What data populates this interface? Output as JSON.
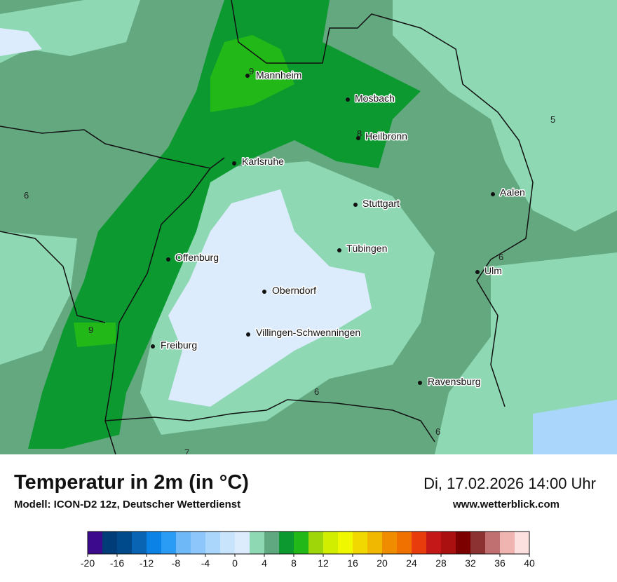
{
  "header": {
    "title": "Temperatur in 2m (in °C)",
    "subtitle": "Modell: ICON-D2 12z, Deutscher Wetterdienst",
    "datetime": "Di, 17.02.2026 14:00 Uhr",
    "website": "www.wetterblick.com"
  },
  "map": {
    "cities": [
      "Mannheim",
      "Mosbach",
      "Heilbronn",
      "Karlsruhe",
      "Stuttgart",
      "Aalen",
      "Tübingen",
      "Ulm",
      "Offenburg",
      "Oberndorf",
      "Villingen-Schwenningen",
      "Freiburg",
      "Ravensburg"
    ],
    "contour_labels": [
      9,
      8,
      5,
      6,
      6,
      9,
      6,
      6,
      7
    ]
  },
  "colorbar": {
    "range": [
      -20,
      40
    ],
    "ticks": [
      -20,
      -16,
      -12,
      -8,
      -4,
      0,
      4,
      8,
      12,
      16,
      20,
      24,
      28,
      32,
      36,
      40
    ],
    "colors": [
      "#3c0a8c",
      "#003c78",
      "#004a8c",
      "#0a64b4",
      "#0a82e6",
      "#2a9cf5",
      "#6eb8f8",
      "#8cc6fa",
      "#aad6fc",
      "#c8e4fc",
      "#dcecfc",
      "#8ed9b4",
      "#60a880",
      "#0c9a30",
      "#22b818",
      "#9ed60a",
      "#d2ee00",
      "#f0f800",
      "#f0d800",
      "#f0b800",
      "#f08c00",
      "#f07000",
      "#e83c0c",
      "#c41818",
      "#aa1010",
      "#7c0000",
      "#8c3232",
      "#c07070",
      "#f0b4b0",
      "#fce0e0"
    ]
  }
}
